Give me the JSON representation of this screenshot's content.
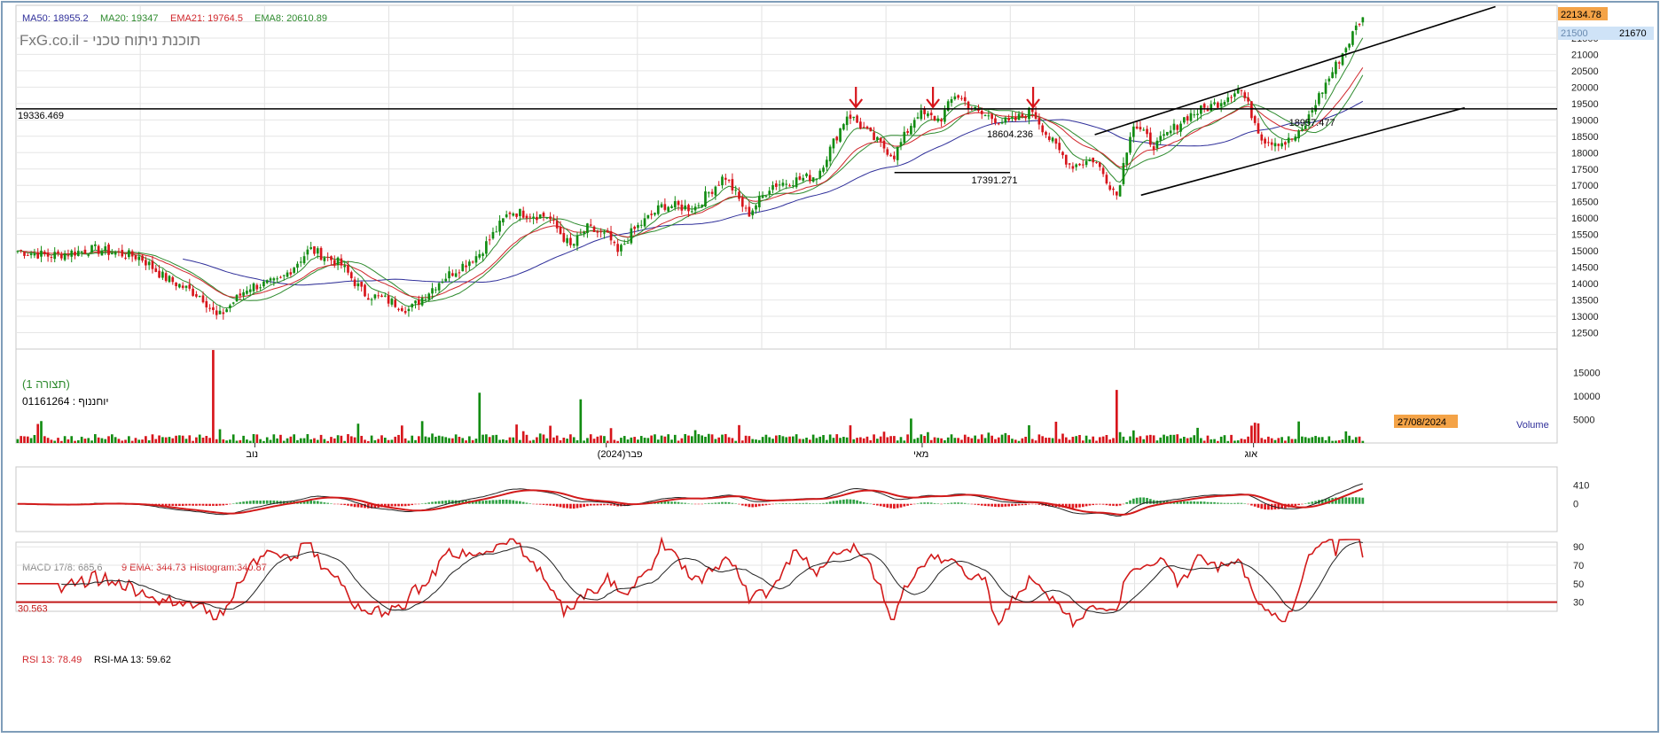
{
  "chart_data": {
    "type": "candlestick",
    "watermark": "FxG.co.il - תוכנת ניתוח טכני",
    "indicators": {
      "ma50": {
        "label": "MA50: 18955.2",
        "color": "#2f2f9a"
      },
      "ma20": {
        "label": "MA20: 19347",
        "color": "#2e8b2e"
      },
      "ema21": {
        "label": "EMA21: 19764.5",
        "color": "#d0262b"
      },
      "ema8": {
        "label": "EMA8: 20610.89",
        "color": "#2e8b2e"
      }
    },
    "price_axis": {
      "min": 12000,
      "max": 22500,
      "ticks": [
        12500,
        13000,
        13500,
        14000,
        14500,
        15000,
        15500,
        16000,
        16500,
        17000,
        17500,
        18000,
        18500,
        19000,
        19500,
        20000,
        20500,
        21000,
        21500,
        22000
      ],
      "tick_labels": [
        "12500",
        "13000",
        "13500",
        "14000",
        "14500",
        "15000",
        "15500",
        "16000",
        "16500",
        "17000",
        "17500",
        "18000",
        "18500",
        "19000",
        "19500",
        "20000",
        "20500",
        "21000",
        "21500",
        ""
      ],
      "last_price_label": "22134.78",
      "marker_label": "21670",
      "marker_prev_label": "21500"
    },
    "horizontal_lines": [
      {
        "label": "19336.469",
        "value": 19336.469
      },
      {
        "label": "17391.271",
        "value": 17391.271
      },
      {
        "label": "18604.236",
        "value": 18604.236
      },
      {
        "label": "18957.477",
        "value": 18957.477
      }
    ],
    "trend_channel": {
      "upper": [
        [
          0.7,
          18550
        ],
        [
          0.96,
          22460
        ]
      ],
      "lower": [
        [
          0.73,
          16700
        ],
        [
          0.94,
          19370
        ]
      ]
    },
    "arrow_markers": [
      0.545,
      0.595,
      0.66
    ],
    "pattern_label": "(תצורה 1)",
    "symbol_label": "01161264 : יוחננוף",
    "volume": {
      "title": "Volume",
      "date_badge": "27/08/2024",
      "ticks": [
        5000,
        10000,
        15000
      ],
      "tick_labels": [
        "5000",
        "10000",
        "15000"
      ],
      "max": 20000
    },
    "x_axis_labels": [
      {
        "label": "נוב",
        "pos": 0.155
      },
      {
        "label": "פבר(2024)",
        "pos": 0.383
      },
      {
        "label": "מאי",
        "pos": 0.588
      },
      {
        "label": "אוג",
        "pos": 0.803
      }
    ],
    "macd": {
      "label_main": "MACD 17/8: 685.6",
      "label_ema": "9 EMA: 344.73",
      "label_hist": "Histogram:340.87",
      "ticks": [
        0,
        410
      ],
      "tick_labels": [
        "0",
        "410"
      ],
      "min": -600,
      "max": 800
    },
    "rsi": {
      "label_rsi": "RSI 13: 78.49",
      "label_ma": "RSI-MA 13: 59.62",
      "ticks": [
        30,
        50,
        70,
        90
      ],
      "tick_labels": [
        "30",
        "50",
        "70",
        "90"
      ],
      "min": 20,
      "max": 95,
      "oversold_label": "30.563",
      "oversold_value": 30
    },
    "keyframes": [
      [
        0,
        15000
      ],
      [
        0.02,
        14850
      ],
      [
        0.05,
        15050
      ],
      [
        0.08,
        14800
      ],
      [
        0.095,
        14200
      ],
      [
        0.12,
        13600
      ],
      [
        0.13,
        12950
      ],
      [
        0.15,
        13900
      ],
      [
        0.17,
        14050
      ],
      [
        0.19,
        15050
      ],
      [
        0.21,
        14600
      ],
      [
        0.225,
        13700
      ],
      [
        0.24,
        13500
      ],
      [
        0.255,
        13200
      ],
      [
        0.275,
        14100
      ],
      [
        0.3,
        14900
      ],
      [
        0.32,
        16200
      ],
      [
        0.345,
        16050
      ],
      [
        0.36,
        15100
      ],
      [
        0.37,
        15700
      ],
      [
        0.385,
        15400
      ],
      [
        0.39,
        14900
      ],
      [
        0.4,
        15600
      ],
      [
        0.42,
        16400
      ],
      [
        0.44,
        16300
      ],
      [
        0.46,
        17300
      ],
      [
        0.475,
        16100
      ],
      [
        0.49,
        17000
      ],
      [
        0.52,
        17300
      ],
      [
        0.54,
        19200
      ],
      [
        0.555,
        18500
      ],
      [
        0.57,
        17900
      ],
      [
        0.585,
        19200
      ],
      [
        0.6,
        19000
      ],
      [
        0.61,
        19800
      ],
      [
        0.625,
        19200
      ],
      [
        0.645,
        18900
      ],
      [
        0.66,
        19300
      ],
      [
        0.67,
        18500
      ],
      [
        0.685,
        17600
      ],
      [
        0.7,
        17800
      ],
      [
        0.715,
        16700
      ],
      [
        0.725,
        18900
      ],
      [
        0.74,
        18200
      ],
      [
        0.76,
        19100
      ],
      [
        0.78,
        19500
      ],
      [
        0.795,
        20000
      ],
      [
        0.81,
        18400
      ],
      [
        0.825,
        18300
      ],
      [
        0.835,
        18600
      ],
      [
        0.845,
        19600
      ],
      [
        0.855,
        20450
      ],
      [
        0.865,
        21300
      ],
      [
        0.874,
        22134
      ]
    ],
    "gen": {
      "n": 400,
      "end": 0.875
    }
  }
}
